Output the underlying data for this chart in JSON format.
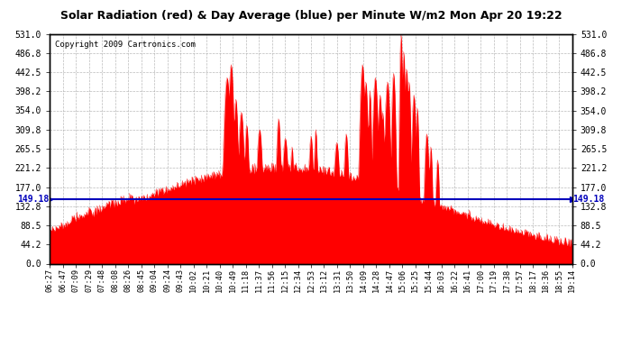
{
  "title": "Solar Radiation (red) & Day Average (blue) per Minute W/m2 Mon Apr 20 19:22",
  "copyright": "Copyright 2009 Cartronics.com",
  "y_max": 531.0,
  "y_ticks": [
    0.0,
    44.2,
    88.5,
    132.8,
    177.0,
    221.2,
    265.5,
    309.8,
    354.0,
    398.2,
    442.5,
    486.8,
    531.0
  ],
  "day_average": 149.18,
  "avg_label": "149.18",
  "bar_color": "#FF0000",
  "avg_line_color": "#0000BB",
  "background_color": "#FFFFFF",
  "grid_color": "#AAAAAA",
  "title_color": "#000000",
  "copyright_color": "#000000",
  "x_labels": [
    "06:27",
    "06:47",
    "07:09",
    "07:29",
    "07:48",
    "08:08",
    "08:26",
    "08:45",
    "09:04",
    "09:24",
    "09:43",
    "10:02",
    "10:21",
    "10:40",
    "10:49",
    "11:18",
    "11:37",
    "11:56",
    "12:15",
    "12:34",
    "12:53",
    "13:12",
    "13:31",
    "13:50",
    "14:09",
    "14:28",
    "14:47",
    "15:06",
    "15:25",
    "15:44",
    "16:03",
    "16:22",
    "16:41",
    "17:00",
    "17:19",
    "17:38",
    "17:57",
    "18:17",
    "18:36",
    "18:55",
    "19:14"
  ],
  "n_points": 773
}
